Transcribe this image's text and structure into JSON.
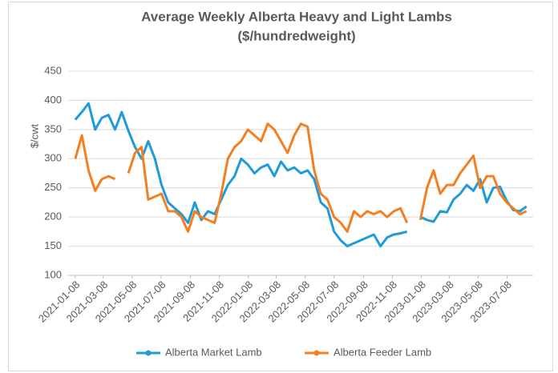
{
  "chart_data": {
    "type": "line",
    "title": "Average Weekly Alberta Heavy and Light Lambs",
    "subtitle": "($/hundredweight)",
    "y_label": "$/cwt",
    "x": [
      "2021-01-08",
      "2021-01-22",
      "2021-02-05",
      "2021-02-19",
      "2021-03-05",
      "2021-03-19",
      "2021-04-02",
      "2021-04-16",
      "2021-04-30",
      "2021-05-14",
      "2021-05-28",
      "2021-06-11",
      "2021-06-25",
      "2021-07-09",
      "2021-07-23",
      "2021-08-06",
      "2021-08-20",
      "2021-09-03",
      "2021-09-17",
      "2021-10-01",
      "2021-10-15",
      "2021-10-29",
      "2021-11-12",
      "2021-11-26",
      "2021-12-10",
      "2021-12-24",
      "2022-01-07",
      "2022-01-21",
      "2022-02-04",
      "2022-02-18",
      "2022-03-04",
      "2022-03-18",
      "2022-04-01",
      "2022-04-15",
      "2022-04-29",
      "2022-05-13",
      "2022-05-27",
      "2022-06-10",
      "2022-06-24",
      "2022-07-08",
      "2022-07-22",
      "2022-08-05",
      "2022-08-19",
      "2022-09-02",
      "2022-09-16",
      "2022-09-30",
      "2022-10-14",
      "2022-10-28",
      "2022-11-11",
      "2022-11-25",
      "2022-12-09",
      "2022-12-23",
      "2023-01-06",
      "2023-01-20",
      "2023-02-03",
      "2023-02-17",
      "2023-03-03",
      "2023-03-17",
      "2023-03-31",
      "2023-04-14",
      "2023-04-28",
      "2023-05-12",
      "2023-05-26",
      "2023-06-09",
      "2023-06-23",
      "2023-07-07",
      "2023-07-21",
      "2023-08-04",
      "2023-08-18"
    ],
    "series": [
      {
        "name": "Alberta Market Lamb",
        "color": "#1f9bd7",
        "values": [
          367,
          380,
          395,
          350,
          370,
          375,
          350,
          380,
          348,
          320,
          300,
          330,
          300,
          255,
          225,
          215,
          205,
          190,
          225,
          195,
          210,
          205,
          230,
          255,
          270,
          300,
          290,
          275,
          285,
          290,
          270,
          295,
          280,
          285,
          275,
          280,
          265,
          225,
          215,
          175,
          160,
          150,
          155,
          160,
          165,
          170,
          150,
          165,
          170,
          172,
          175,
          null,
          200,
          195,
          192,
          210,
          208,
          230,
          240,
          255,
          245,
          265,
          225,
          250,
          252,
          228,
          212,
          210,
          218
        ]
      },
      {
        "name": "Alberta Feeder Lamb",
        "color": "#f57f20",
        "values": [
          300,
          340,
          280,
          245,
          265,
          270,
          265,
          null,
          275,
          310,
          320,
          230,
          235,
          240,
          210,
          210,
          200,
          175,
          210,
          200,
          195,
          190,
          240,
          300,
          320,
          330,
          350,
          340,
          330,
          360,
          350,
          330,
          310,
          340,
          360,
          355,
          280,
          240,
          230,
          200,
          190,
          175,
          210,
          200,
          210,
          205,
          210,
          200,
          210,
          215,
          190,
          null,
          195,
          250,
          280,
          240,
          255,
          255,
          275,
          290,
          305,
          250,
          270,
          270,
          240,
          225,
          215,
          205,
          210
        ]
      }
    ],
    "xlim": [
      "2020-12-24",
      "2023-09-01"
    ],
    "xticks": [
      "2021-01-08",
      "2021-03-08",
      "2021-05-08",
      "2021-07-08",
      "2021-09-08",
      "2021-11-08",
      "2022-01-08",
      "2022-03-08",
      "2022-05-08",
      "2022-07-08",
      "2022-09-08",
      "2022-11-08",
      "2023-01-08",
      "2023-03-08",
      "2023-05-08",
      "2023-07-08"
    ],
    "ylim": [
      100,
      450
    ],
    "yticks": [
      100,
      150,
      200,
      250,
      300,
      350,
      400,
      450
    ],
    "grid": true,
    "legend": "bottom"
  }
}
